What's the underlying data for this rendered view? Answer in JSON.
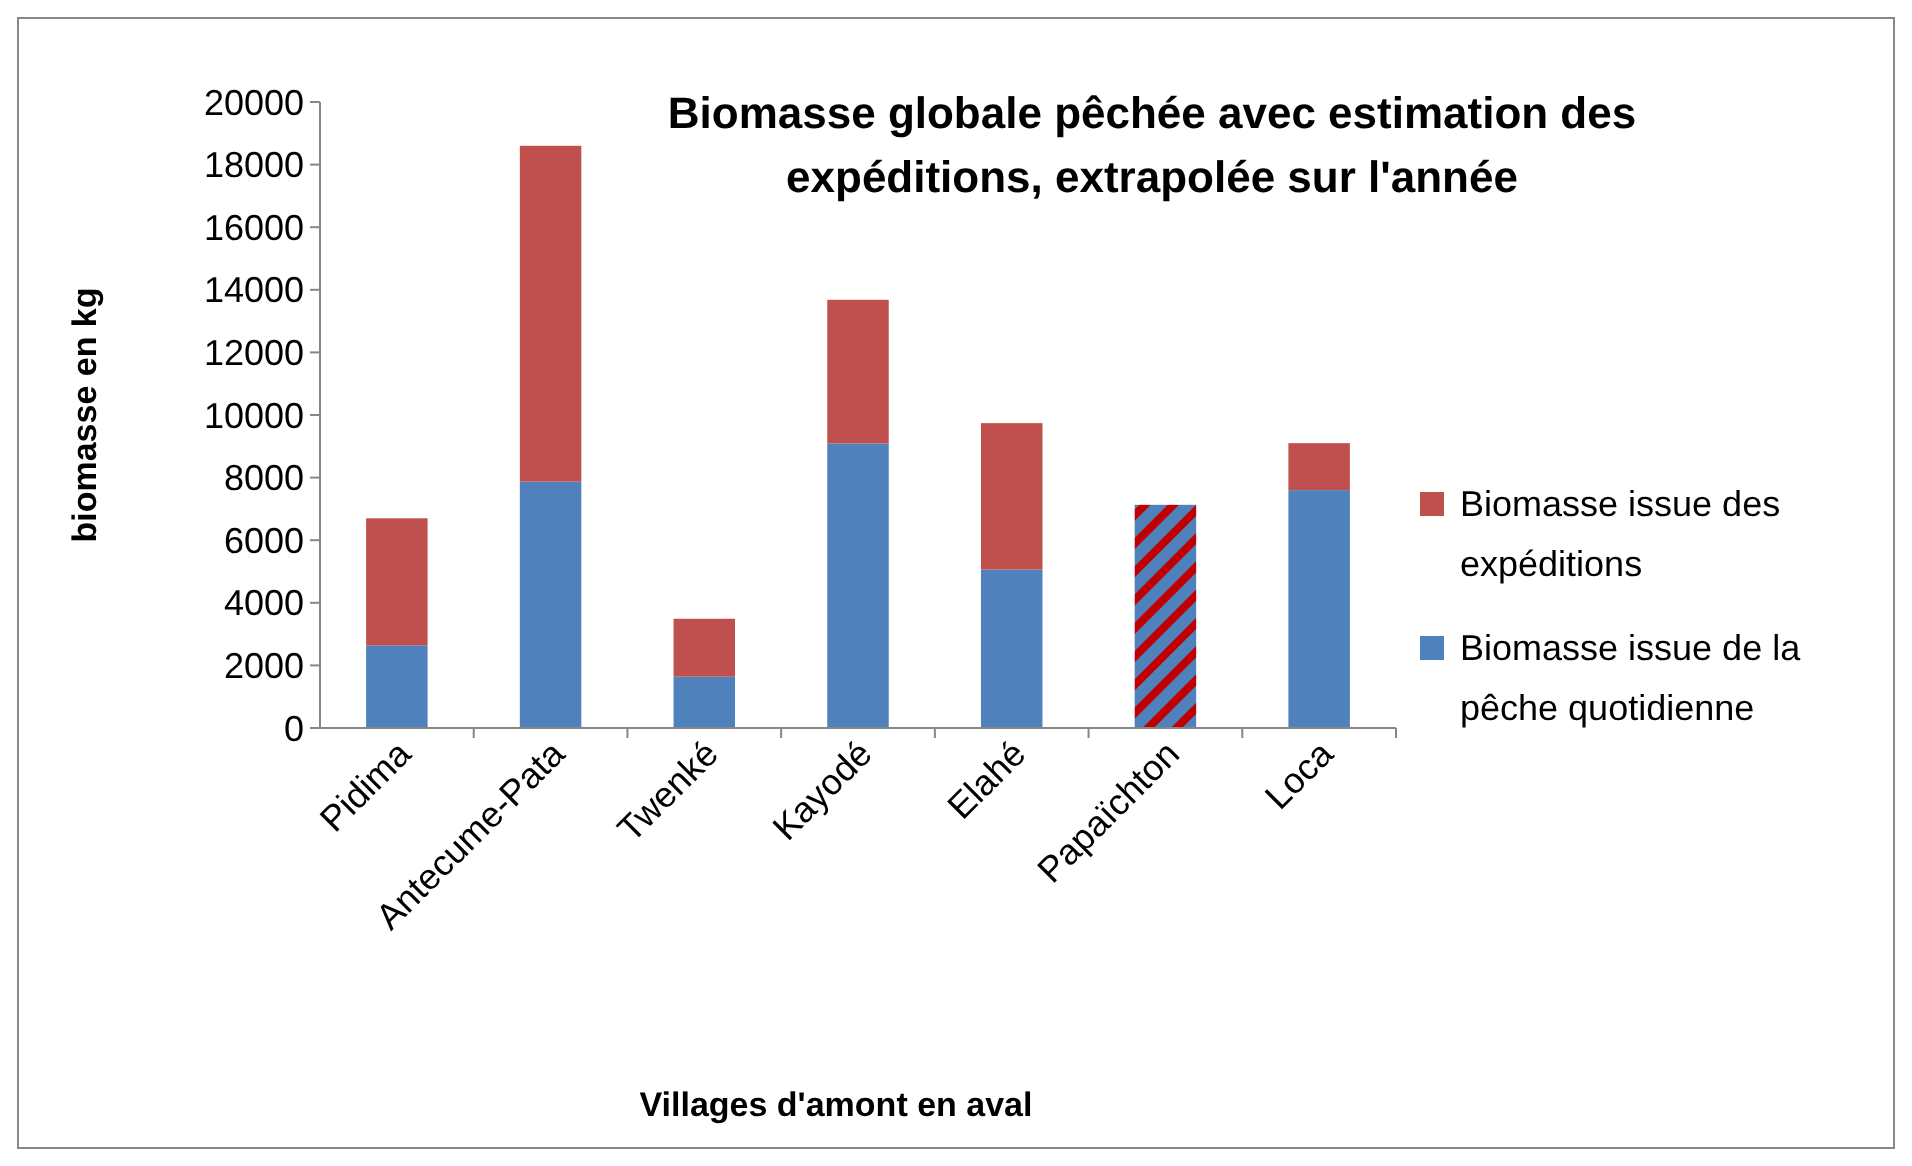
{
  "chart_data": {
    "type": "bar",
    "stacked": true,
    "title": "Biomasse globale pêchée avec estimation des expéditions, extrapolée sur l'année",
    "xlabel": "Villages d'amont en aval",
    "ylabel": "biomasse en kg",
    "categories": [
      "Pidima",
      "Antecume-Pata",
      "Twenké",
      "Kayodé",
      "Elahé",
      "Papaïchton",
      "Loca"
    ],
    "series": [
      {
        "name": "Biomasse issue de la pêche quotidienne",
        "color": "#4f81bd",
        "values": [
          2640,
          7870,
          1640,
          9090,
          5060,
          null,
          7600
        ]
      },
      {
        "name": "Biomasse issue des expéditions",
        "color": "#c0504d",
        "values": [
          4060,
          10730,
          1850,
          4590,
          4680,
          null,
          1500
        ]
      },
      {
        "color": "#c00000",
        "values": [
          null,
          null,
          null,
          null,
          null,
          7130,
          null
        ]
      }
    ],
    "ylim": [
      0,
      20000
    ],
    "yticks": [
      0,
      2000,
      4000,
      6000,
      8000,
      10000,
      12000,
      14000,
      16000,
      18000,
      20000
    ],
    "grid": false,
    "legend": "right"
  }
}
